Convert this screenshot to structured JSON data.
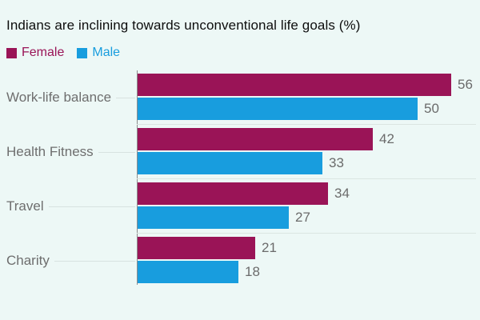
{
  "title": "Indians are inclining towards unconventional life goals (%)",
  "legend": {
    "items": [
      {
        "label": "Female",
        "color": "#9a1457"
      },
      {
        "label": "Male",
        "color": "#189dde"
      }
    ]
  },
  "colors": {
    "background": "#edf8f6",
    "female": "#9a1457",
    "male": "#189dde",
    "category_text": "#6e6e6e",
    "value_text": "#6b6b6b",
    "axis": "#8c8c8c",
    "separator": "#dbe5e2"
  },
  "chart_data": {
    "type": "bar",
    "orientation": "horizontal",
    "title": "Indians are inclining towards unconventional life goals (%)",
    "categories": [
      "Work-life balance",
      "Health Fitness",
      "Travel",
      "Charity"
    ],
    "series": [
      {
        "name": "Female",
        "color": "#9a1457",
        "values": [
          56,
          42,
          34,
          21
        ]
      },
      {
        "name": "Male",
        "color": "#189dde",
        "values": [
          50,
          33,
          27,
          18
        ]
      }
    ],
    "value_labels_shown": true,
    "xlabel": "",
    "ylabel": "",
    "xlim": [
      0,
      60
    ],
    "grid": false,
    "legend_position": "top-left",
    "unit": "%"
  }
}
